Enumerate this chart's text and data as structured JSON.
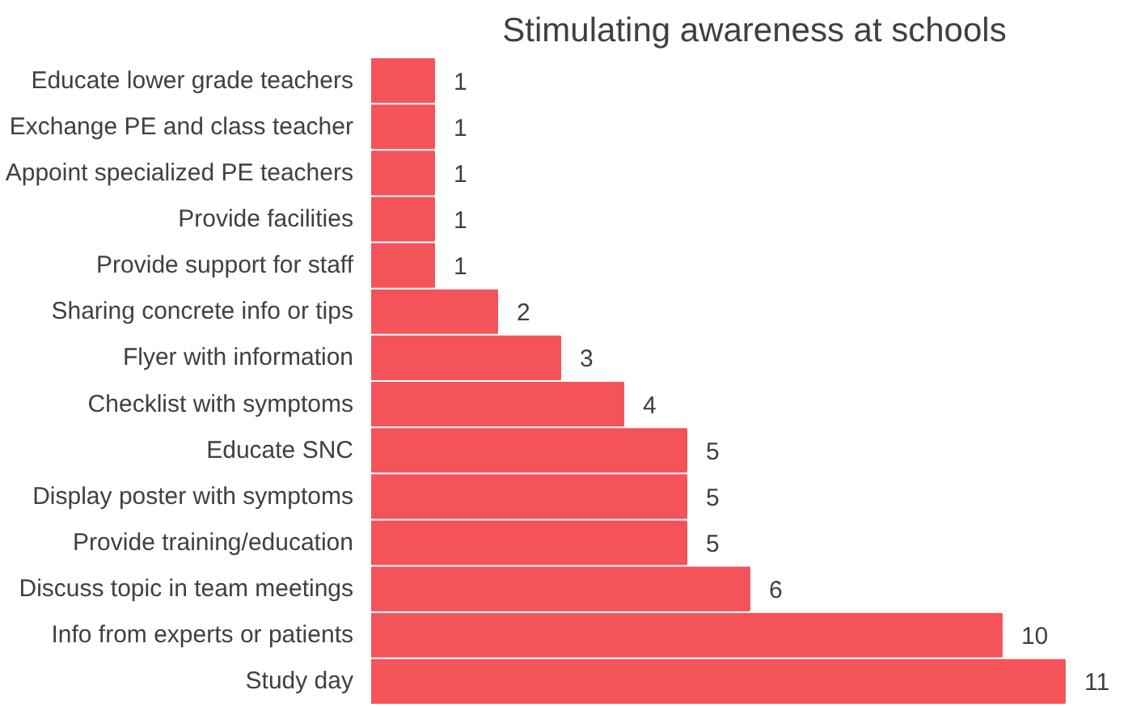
{
  "chart_data": {
    "type": "bar",
    "orientation": "horizontal",
    "title": "Stimulating awareness at schools",
    "categories": [
      "Educate lower grade teachers",
      "Exchange PE and class teacher",
      "Appoint specialized PE teachers",
      "Provide facilities",
      "Provide support for staff",
      "Sharing concrete info or tips",
      "Flyer with information",
      "Checklist with symptoms",
      "Educate SNC",
      "Display poster with symptoms",
      "Provide training/education",
      "Discuss topic in team meetings",
      "Info from experts or patients",
      "Study day"
    ],
    "values": [
      1,
      1,
      1,
      1,
      1,
      2,
      3,
      4,
      5,
      5,
      5,
      6,
      10,
      11
    ],
    "color": "#f4535a",
    "data_labels": true,
    "grid": false
  }
}
